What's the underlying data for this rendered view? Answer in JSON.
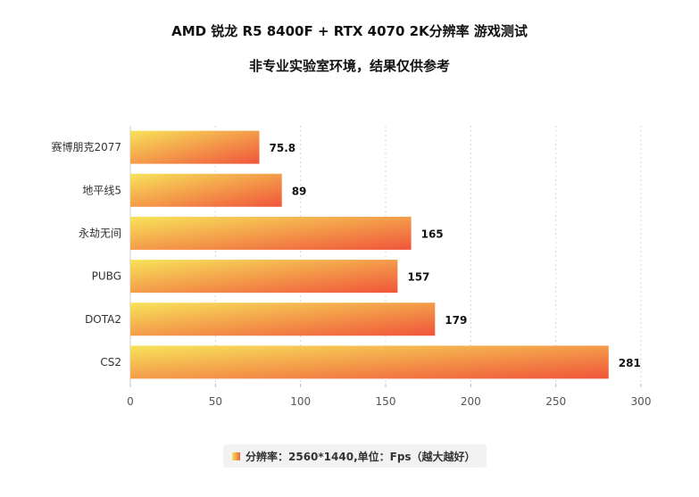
{
  "title": "AMD 锐龙 R5 8400F + RTX 4070 2K分辨率 游戏测试",
  "subtitle": "非专业实验室环境，结果仅供参考",
  "legend": {
    "label": "分辨率：2560*1440,单位：Fps（越大越好）"
  },
  "colors": {
    "bar_start": "#f7e35a",
    "bar_end": "#f0553a",
    "grid": "#d8d8d8",
    "axis_text": "#555555"
  },
  "chart_data": {
    "type": "bar",
    "orientation": "horizontal",
    "categories": [
      "赛博朋克2077",
      "地平线5",
      "永劫无间",
      "PUBG",
      "DOTA2",
      "CS2"
    ],
    "values": [
      75.8,
      89,
      165,
      157,
      179,
      281
    ],
    "xlim": [
      0,
      300
    ],
    "xticks": [
      0,
      50,
      100,
      150,
      200,
      250,
      300
    ],
    "title": "AMD 锐龙 R5 8400F + RTX 4070 2K分辨率 游戏测试",
    "xlabel": "",
    "ylabel": "",
    "grid": true,
    "legend_position": "bottom"
  }
}
